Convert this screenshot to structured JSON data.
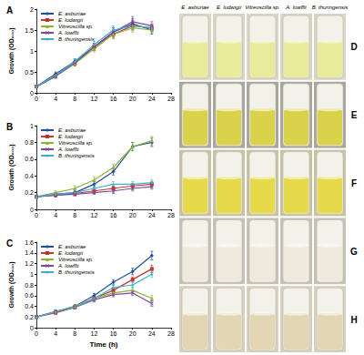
{
  "chart_data": [
    {
      "type": "line",
      "title": "A",
      "y_label": "Growth (OD₆₀₀)",
      "x": [
        0,
        4,
        8,
        12,
        16,
        20,
        24
      ],
      "xlim": [
        0,
        28
      ],
      "xticks": [
        0,
        4,
        8,
        12,
        16,
        20,
        24,
        28
      ],
      "ylim": [
        0,
        2
      ],
      "yticks": [
        0,
        0.5,
        1,
        1.5,
        2
      ],
      "legend": "upper left",
      "grid": false,
      "series": [
        {
          "name": "E. asburiae",
          "color": "#1f4e9c",
          "marker": "diamond",
          "values": [
            0.15,
            0.45,
            0.75,
            1.1,
            1.45,
            1.65,
            1.5
          ],
          "errors": [
            0.03,
            0.05,
            0.06,
            0.08,
            0.1,
            0.12,
            0.1
          ]
        },
        {
          "name": "E. ludwigii",
          "color": "#c0392b",
          "marker": "square",
          "values": [
            0.15,
            0.4,
            0.7,
            1.1,
            1.4,
            1.6,
            1.55
          ],
          "errors": [
            0.03,
            0.05,
            0.06,
            0.08,
            0.1,
            0.1,
            0.08
          ]
        },
        {
          "name": "Vitreoscilla sp.",
          "color": "#8db33a",
          "marker": "triangle",
          "values": [
            0.15,
            0.4,
            0.7,
            1.05,
            1.4,
            1.55,
            1.5
          ],
          "errors": [
            0.03,
            0.04,
            0.05,
            0.07,
            0.09,
            0.1,
            0.08
          ]
        },
        {
          "name": "A. lowffii",
          "color": "#7b4a9c",
          "marker": "x",
          "values": [
            0.15,
            0.4,
            0.72,
            1.1,
            1.45,
            1.7,
            1.6
          ],
          "errors": [
            0.03,
            0.05,
            0.06,
            0.08,
            0.1,
            0.12,
            0.1
          ]
        },
        {
          "name": "B. thuringensis",
          "color": "#3ab0d8",
          "marker": "star",
          "values": [
            0.15,
            0.42,
            0.75,
            1.15,
            1.5,
            1.6,
            1.55
          ],
          "errors": [
            0.03,
            0.05,
            0.06,
            0.08,
            0.1,
            0.1,
            0.09
          ]
        }
      ]
    },
    {
      "type": "line",
      "title": "B",
      "y_label": "Growth (OD₆₀₀)",
      "x": [
        0,
        4,
        8,
        12,
        16,
        20,
        24
      ],
      "xlim": [
        0,
        28
      ],
      "xticks": [
        0,
        4,
        8,
        12,
        16,
        20,
        24,
        28
      ],
      "ylim": [
        0,
        1
      ],
      "yticks": [
        0,
        0.2,
        0.4,
        0.6,
        0.8,
        1
      ],
      "legend": "upper left",
      "grid": false,
      "series": [
        {
          "name": "E. asburiae",
          "color": "#1f4e9c",
          "marker": "diamond",
          "values": [
            0.15,
            0.18,
            0.2,
            0.3,
            0.45,
            0.75,
            0.8
          ],
          "errors": [
            0.02,
            0.02,
            0.03,
            0.03,
            0.04,
            0.05,
            0.05
          ]
        },
        {
          "name": "E. ludwigii",
          "color": "#c0392b",
          "marker": "square",
          "values": [
            0.15,
            0.17,
            0.19,
            0.22,
            0.25,
            0.28,
            0.3
          ],
          "errors": [
            0.02,
            0.02,
            0.02,
            0.03,
            0.03,
            0.03,
            0.03
          ]
        },
        {
          "name": "Vitreoscilla sp.",
          "color": "#8db33a",
          "marker": "triangle",
          "values": [
            0.15,
            0.2,
            0.25,
            0.35,
            0.5,
            0.75,
            0.82
          ],
          "errors": [
            0.02,
            0.02,
            0.03,
            0.04,
            0.04,
            0.05,
            0.05
          ]
        },
        {
          "name": "A. lowffii",
          "color": "#7b4a9c",
          "marker": "x",
          "values": [
            0.15,
            0.17,
            0.18,
            0.2,
            0.22,
            0.25,
            0.27
          ],
          "errors": [
            0.02,
            0.02,
            0.02,
            0.02,
            0.03,
            0.03,
            0.03
          ]
        },
        {
          "name": "B. thuringensis",
          "color": "#3ab0d8",
          "marker": "star",
          "values": [
            0.15,
            0.18,
            0.2,
            0.25,
            0.3,
            0.3,
            0.32
          ],
          "errors": [
            0.02,
            0.02,
            0.02,
            0.03,
            0.03,
            0.03,
            0.03
          ]
        }
      ]
    },
    {
      "type": "line",
      "title": "C",
      "y_label": "Growth (OD₆₀₀)",
      "x_label": "Time (h)",
      "x": [
        0,
        4,
        8,
        12,
        16,
        20,
        24
      ],
      "xlim": [
        0,
        28
      ],
      "xticks": [
        0,
        4,
        8,
        12,
        16,
        20,
        24,
        28
      ],
      "ylim": [
        0,
        1.6
      ],
      "yticks": [
        0,
        0.2,
        0.4,
        0.6,
        0.8,
        1,
        1.2,
        1.4,
        1.6
      ],
      "legend": "upper left",
      "grid": false,
      "series": [
        {
          "name": "E. asburiae",
          "color": "#1f4e9c",
          "marker": "diamond",
          "values": [
            0.2,
            0.3,
            0.4,
            0.6,
            0.85,
            1.05,
            1.35
          ],
          "errors": [
            0.02,
            0.03,
            0.03,
            0.04,
            0.05,
            0.06,
            0.08
          ]
        },
        {
          "name": "E. ludwigii",
          "color": "#c0392b",
          "marker": "square",
          "values": [
            0.2,
            0.28,
            0.38,
            0.55,
            0.7,
            0.9,
            1.1
          ],
          "errors": [
            0.02,
            0.03,
            0.03,
            0.04,
            0.05,
            0.05,
            0.07
          ]
        },
        {
          "name": "Vitreoscilla sp.",
          "color": "#8db33a",
          "marker": "triangle",
          "values": [
            0.2,
            0.3,
            0.4,
            0.55,
            0.65,
            0.7,
            0.55
          ],
          "errors": [
            0.02,
            0.03,
            0.03,
            0.04,
            0.04,
            0.05,
            0.05
          ]
        },
        {
          "name": "A. lowffii",
          "color": "#7b4a9c",
          "marker": "x",
          "values": [
            0.2,
            0.3,
            0.38,
            0.52,
            0.62,
            0.65,
            0.45
          ],
          "errors": [
            0.02,
            0.03,
            0.03,
            0.04,
            0.04,
            0.05,
            0.05
          ]
        },
        {
          "name": "B. thuringensis",
          "color": "#3ab0d8",
          "marker": "star",
          "values": [
            0.2,
            0.3,
            0.38,
            0.55,
            0.75,
            0.8,
            1.0
          ],
          "errors": [
            0.02,
            0.03,
            0.03,
            0.04,
            0.05,
            0.05,
            0.06
          ]
        }
      ]
    }
  ],
  "photo_panels": {
    "columns": [
      "E. asburiae",
      "E. ludwigii",
      "Vitreoscilla sp.",
      "A. lowffii",
      "B. thuringensis"
    ],
    "rows": [
      "D",
      "E",
      "F",
      "G",
      "H"
    ]
  }
}
